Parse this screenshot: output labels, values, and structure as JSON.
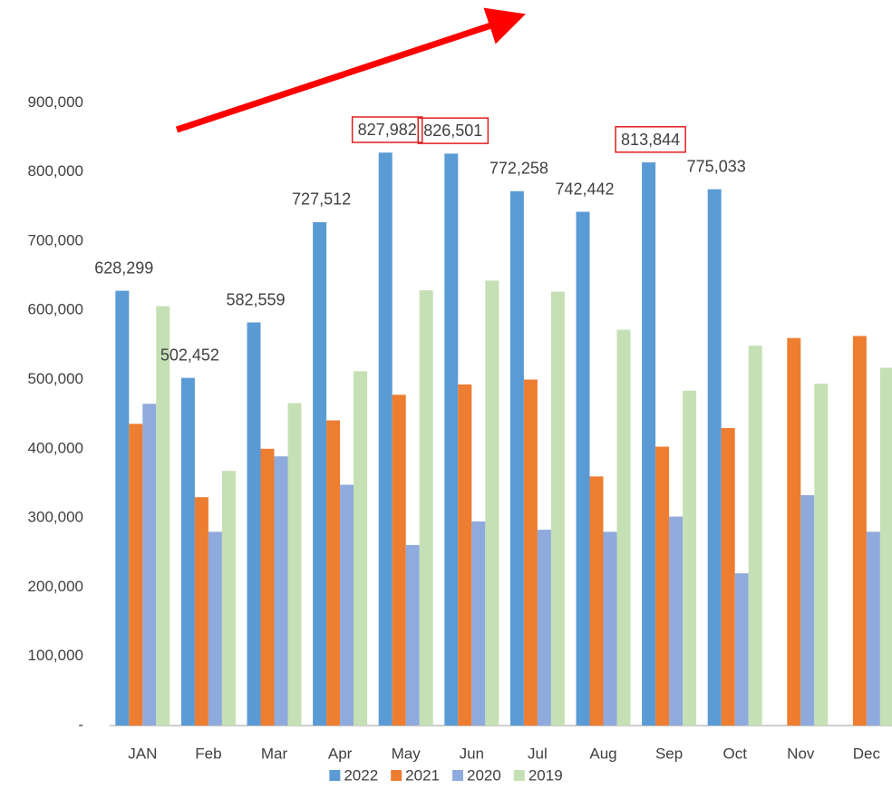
{
  "chart_data": {
    "type": "bar",
    "categories": [
      "JAN",
      "Feb",
      "Mar",
      "Apr",
      "May",
      "Jun",
      "Jul",
      "Aug",
      "Sep",
      "Oct",
      "Nov",
      "Dec"
    ],
    "series": [
      {
        "name": "2022",
        "color": "#5b9bd5",
        "values": [
          628299,
          502452,
          582559,
          727512,
          827982,
          826501,
          772258,
          742442,
          813844,
          775033,
          null,
          null
        ],
        "value_labels": [
          "628,299",
          "502,452",
          "582,559",
          "727,512",
          "827,982",
          "826,501",
          "772,258",
          "742,442",
          "813,844",
          "775,033",
          null,
          null
        ]
      },
      {
        "name": "2021",
        "color": "#ed7d31",
        "values": [
          436000,
          330000,
          400000,
          441000,
          478000,
          493000,
          500000,
          360000,
          403000,
          430000,
          560000,
          563000
        ]
      },
      {
        "name": "2020",
        "color": "#8faadc",
        "values": [
          465000,
          280000,
          389000,
          348000,
          261000,
          295000,
          283000,
          280000,
          302000,
          220000,
          333000,
          280000
        ]
      },
      {
        "name": "2019",
        "color": "#c5e0b4",
        "values": [
          606000,
          368000,
          466000,
          512000,
          629000,
          643000,
          627000,
          572000,
          484000,
          549000,
          494000,
          517000
        ]
      }
    ],
    "highlighted_labels": [
      4,
      5,
      8
    ],
    "highlight_color": "#e02020",
    "ylim": [
      0,
      1000000
    ],
    "yticks": [
      {
        "value": 0,
        "label": "-"
      },
      {
        "value": 100000,
        "label": "100,000"
      },
      {
        "value": 200000,
        "label": "200,000"
      },
      {
        "value": 300000,
        "label": "300,000"
      },
      {
        "value": 400000,
        "label": "400,000"
      },
      {
        "value": 500000,
        "label": "500,000"
      },
      {
        "value": 600000,
        "label": "600,000"
      },
      {
        "value": 700000,
        "label": "700,000"
      },
      {
        "value": 800000,
        "label": "800,000"
      },
      {
        "value": 900000,
        "label": "900,000"
      }
    ],
    "grid": false,
    "legend": "bottom"
  }
}
